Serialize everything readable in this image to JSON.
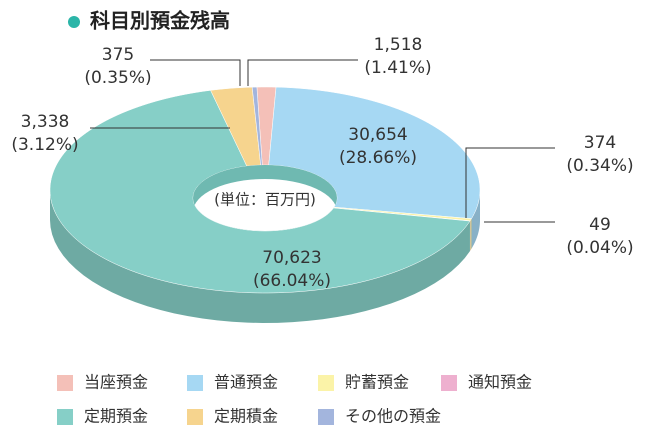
{
  "chart_data": {
    "type": "donut3d",
    "title": "科目別預金残高",
    "center_label": "(単位：百万円)",
    "categories": [
      "当座預金",
      "普通預金",
      "貯蓄預金",
      "通知預金",
      "定期預金",
      "定期積金",
      "その他の預金"
    ],
    "values": [
      1518,
      30654,
      374,
      49,
      70623,
      3338,
      375
    ],
    "value_labels": [
      "1,518",
      "30,654",
      "374",
      "49",
      "70,623",
      "3,338",
      "375"
    ],
    "percents": [
      1.41,
      28.66,
      0.34,
      0.04,
      66.04,
      3.12,
      0.35
    ],
    "percent_labels": [
      "(1.41%)",
      "(28.66%)",
      "(0.34%)",
      "(0.04%)",
      "(66.04%)",
      "(3.12%)",
      "(0.35%)"
    ],
    "colors": [
      "#f4c0b8",
      "#a6d8f3",
      "#fbf3a8",
      "#eeb0cf",
      "#86cfc7",
      "#f6d48e",
      "#a3b5dd"
    ]
  }
}
